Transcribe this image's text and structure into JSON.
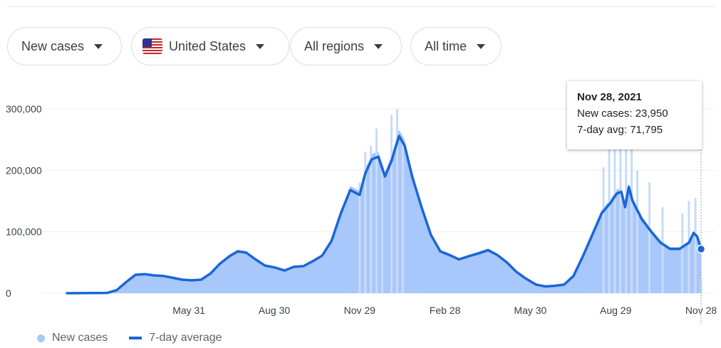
{
  "filters": [
    {
      "label": "New cases"
    },
    {
      "label": "United States",
      "has_flag": true
    },
    {
      "label": "All regions"
    },
    {
      "label": "All time"
    }
  ],
  "tooltip": {
    "date": "Nov 28, 2021",
    "new_cases": "New cases: 23,950",
    "avg": "7-day avg: 71,795"
  },
  "legend": {
    "new_cases": "New cases",
    "avg": "7-day average"
  },
  "colors": {
    "bars": "#a8c7fa",
    "bar_peaks": "#c9dbfa",
    "line": "#1a66d8",
    "grid": "#eceff1"
  },
  "chart_data": {
    "type": "area",
    "xlabel": "",
    "ylabel": "",
    "ylim": [
      0,
      300000
    ],
    "grid": true,
    "legend_position": "bottom-left",
    "y_ticks": [
      {
        "value": 0,
        "label": "0"
      },
      {
        "value": 100000,
        "label": "100,000"
      },
      {
        "value": 200000,
        "label": "200,000"
      },
      {
        "value": 300000,
        "label": "300,000"
      }
    ],
    "x_ticks": [
      {
        "date": "2020-05-31",
        "label": "May 31"
      },
      {
        "date": "2020-08-30",
        "label": "Aug 30"
      },
      {
        "date": "2020-11-29",
        "label": "Nov 29"
      },
      {
        "date": "2021-02-28",
        "label": "Feb 28"
      },
      {
        "date": "2021-05-30",
        "label": "May 30"
      },
      {
        "date": "2021-08-29",
        "label": "Aug 29"
      },
      {
        "date": "2021-11-28",
        "label": "Nov 28"
      }
    ],
    "x_range": [
      "2020-01-22",
      "2021-11-28"
    ],
    "series": [
      {
        "name": "7-day average",
        "points": [
          [
            "2020-01-22",
            0
          ],
          [
            "2020-03-05",
            500
          ],
          [
            "2020-03-15",
            5000
          ],
          [
            "2020-03-25",
            18000
          ],
          [
            "2020-04-04",
            30000
          ],
          [
            "2020-04-14",
            31000
          ],
          [
            "2020-04-24",
            29000
          ],
          [
            "2020-05-04",
            28000
          ],
          [
            "2020-05-14",
            25000
          ],
          [
            "2020-05-24",
            22000
          ],
          [
            "2020-06-03",
            21000
          ],
          [
            "2020-06-13",
            22000
          ],
          [
            "2020-06-23",
            32000
          ],
          [
            "2020-07-03",
            48000
          ],
          [
            "2020-07-13",
            60000
          ],
          [
            "2020-07-22",
            68000
          ],
          [
            "2020-07-31",
            66000
          ],
          [
            "2020-08-10",
            55000
          ],
          [
            "2020-08-20",
            45000
          ],
          [
            "2020-08-30",
            42000
          ],
          [
            "2020-09-10",
            37000
          ],
          [
            "2020-09-20",
            43000
          ],
          [
            "2020-09-30",
            44000
          ],
          [
            "2020-10-10",
            52000
          ],
          [
            "2020-10-20",
            61000
          ],
          [
            "2020-10-30",
            85000
          ],
          [
            "2020-11-09",
            130000
          ],
          [
            "2020-11-19",
            168000
          ],
          [
            "2020-11-29",
            160000
          ],
          [
            "2020-12-05",
            195000
          ],
          [
            "2020-12-12",
            218000
          ],
          [
            "2020-12-19",
            222000
          ],
          [
            "2020-12-26",
            190000
          ],
          [
            "2021-01-02",
            215000
          ],
          [
            "2021-01-10",
            256000
          ],
          [
            "2021-01-16",
            240000
          ],
          [
            "2021-01-24",
            190000
          ],
          [
            "2021-02-03",
            140000
          ],
          [
            "2021-02-13",
            95000
          ],
          [
            "2021-02-23",
            68000
          ],
          [
            "2021-03-05",
            62000
          ],
          [
            "2021-03-15",
            55000
          ],
          [
            "2021-03-25",
            60000
          ],
          [
            "2021-04-05",
            65000
          ],
          [
            "2021-04-15",
            70000
          ],
          [
            "2021-04-25",
            62000
          ],
          [
            "2021-05-05",
            50000
          ],
          [
            "2021-05-15",
            35000
          ],
          [
            "2021-05-25",
            24000
          ],
          [
            "2021-06-05",
            14000
          ],
          [
            "2021-06-15",
            11000
          ],
          [
            "2021-06-25",
            12000
          ],
          [
            "2021-07-05",
            14000
          ],
          [
            "2021-07-15",
            28000
          ],
          [
            "2021-07-25",
            60000
          ],
          [
            "2021-08-04",
            95000
          ],
          [
            "2021-08-14",
            130000
          ],
          [
            "2021-08-24",
            148000
          ],
          [
            "2021-08-30",
            162000
          ],
          [
            "2021-09-04",
            165000
          ],
          [
            "2021-09-08",
            140000
          ],
          [
            "2021-09-12",
            173000
          ],
          [
            "2021-09-16",
            150000
          ],
          [
            "2021-09-26",
            120000
          ],
          [
            "2021-10-06",
            100000
          ],
          [
            "2021-10-16",
            82000
          ],
          [
            "2021-10-26",
            72000
          ],
          [
            "2021-11-05",
            72000
          ],
          [
            "2021-11-15",
            82000
          ],
          [
            "2021-11-20",
            98000
          ],
          [
            "2021-11-24",
            92000
          ],
          [
            "2021-11-28",
            71795
          ]
        ]
      },
      {
        "name": "New cases",
        "spikes": [
          [
            "2020-11-29",
            180000
          ],
          [
            "2020-12-05",
            230000
          ],
          [
            "2020-12-11",
            240000
          ],
          [
            "2020-12-17",
            268000
          ],
          [
            "2020-12-23",
            210000
          ],
          [
            "2021-01-02",
            290000
          ],
          [
            "2021-01-08",
            300000
          ],
          [
            "2021-01-14",
            250000
          ],
          [
            "2021-08-16",
            205000
          ],
          [
            "2021-08-22",
            250000
          ],
          [
            "2021-08-28",
            260000
          ],
          [
            "2021-09-03",
            290000
          ],
          [
            "2021-09-09",
            265000
          ],
          [
            "2021-09-15",
            250000
          ],
          [
            "2021-09-21",
            200000
          ],
          [
            "2021-10-04",
            180000
          ],
          [
            "2021-10-18",
            140000
          ],
          [
            "2021-11-08",
            130000
          ],
          [
            "2021-11-15",
            150000
          ],
          [
            "2021-11-22",
            155000
          ],
          [
            "2021-11-28",
            23950
          ]
        ]
      }
    ],
    "highlight": {
      "date": "2021-11-28",
      "value": 71795
    }
  }
}
